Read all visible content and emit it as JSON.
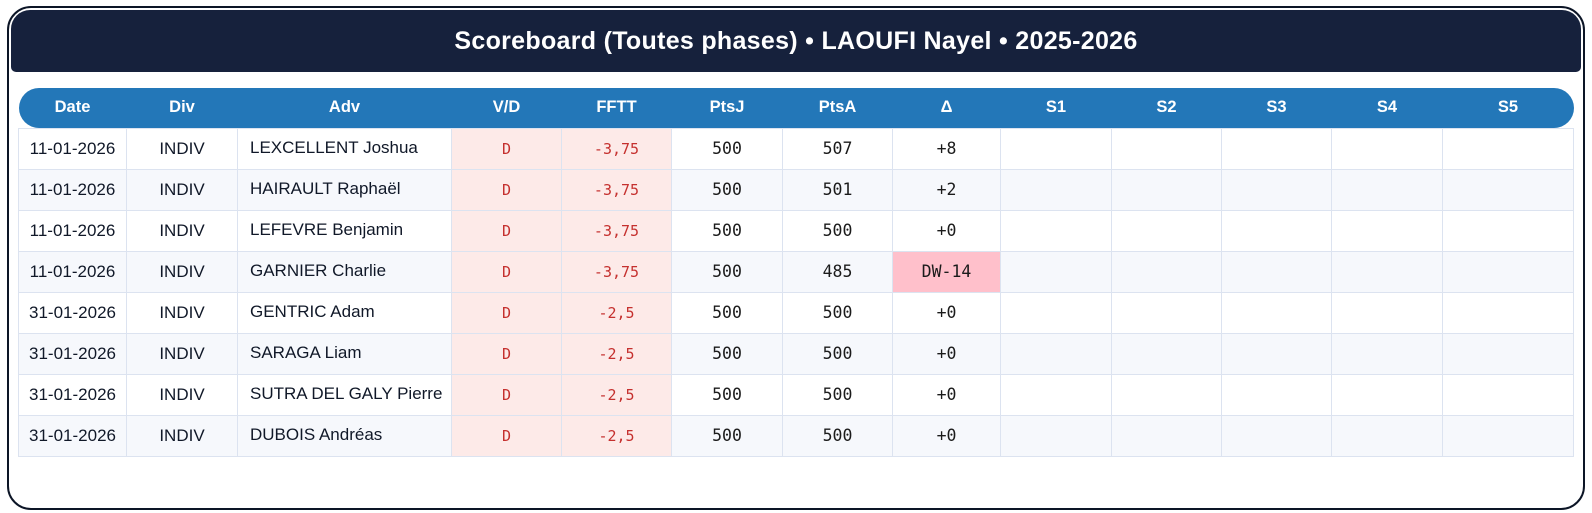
{
  "title": "Scoreboard (Toutes phases) • LAOUFI Nayel • 2025-2026",
  "colors": {
    "frame_navy": "#16213c",
    "header_blue": "#2377b8",
    "defeat_cell_bg": "#fdeae8",
    "defeat_text_red": "#c5302e",
    "delta_warning_pink": "#ffc0cb",
    "row_alt_bg": "#f6f8fc"
  },
  "table": {
    "columns": [
      "Date",
      "Div",
      "Adv",
      "V/D",
      "FFTT",
      "PtsJ",
      "PtsA",
      "Δ",
      "S1",
      "S2",
      "S3",
      "S4",
      "S5"
    ],
    "rows": [
      {
        "date": "11-01-2026",
        "div": "INDIV",
        "adv": "LEXCELLENT Joshua",
        "vd": "D",
        "fftt": "-3,75",
        "ptsj": "500",
        "ptsa": "507",
        "delta": "+8",
        "delta_highlight": false,
        "s1": "",
        "s2": "",
        "s3": "",
        "s4": "",
        "s5": ""
      },
      {
        "date": "11-01-2026",
        "div": "INDIV",
        "adv": "HAIRAULT Raphaël",
        "vd": "D",
        "fftt": "-3,75",
        "ptsj": "500",
        "ptsa": "501",
        "delta": "+2",
        "delta_highlight": false,
        "s1": "",
        "s2": "",
        "s3": "",
        "s4": "",
        "s5": ""
      },
      {
        "date": "11-01-2026",
        "div": "INDIV",
        "adv": "LEFEVRE Benjamin",
        "vd": "D",
        "fftt": "-3,75",
        "ptsj": "500",
        "ptsa": "500",
        "delta": "+0",
        "delta_highlight": false,
        "s1": "",
        "s2": "",
        "s3": "",
        "s4": "",
        "s5": ""
      },
      {
        "date": "11-01-2026",
        "div": "INDIV",
        "adv": "GARNIER Charlie",
        "vd": "D",
        "fftt": "-3,75",
        "ptsj": "500",
        "ptsa": "485",
        "delta": "DW-14",
        "delta_highlight": true,
        "s1": "",
        "s2": "",
        "s3": "",
        "s4": "",
        "s5": ""
      },
      {
        "date": "31-01-2026",
        "div": "INDIV",
        "adv": "GENTRIC Adam",
        "vd": "D",
        "fftt": "-2,5",
        "ptsj": "500",
        "ptsa": "500",
        "delta": "+0",
        "delta_highlight": false,
        "s1": "",
        "s2": "",
        "s3": "",
        "s4": "",
        "s5": ""
      },
      {
        "date": "31-01-2026",
        "div": "INDIV",
        "adv": "SARAGA Liam",
        "vd": "D",
        "fftt": "-2,5",
        "ptsj": "500",
        "ptsa": "500",
        "delta": "+0",
        "delta_highlight": false,
        "s1": "",
        "s2": "",
        "s3": "",
        "s4": "",
        "s5": ""
      },
      {
        "date": "31-01-2026",
        "div": "INDIV",
        "adv": "SUTRA DEL GALY Pierre",
        "vd": "D",
        "fftt": "-2,5",
        "ptsj": "500",
        "ptsa": "500",
        "delta": "+0",
        "delta_highlight": false,
        "s1": "",
        "s2": "",
        "s3": "",
        "s4": "",
        "s5": ""
      },
      {
        "date": "31-01-2026",
        "div": "INDIV",
        "adv": "DUBOIS Andréas",
        "vd": "D",
        "fftt": "-2,5",
        "ptsj": "500",
        "ptsa": "500",
        "delta": "+0",
        "delta_highlight": false,
        "s1": "",
        "s2": "",
        "s3": "",
        "s4": "",
        "s5": ""
      }
    ]
  }
}
